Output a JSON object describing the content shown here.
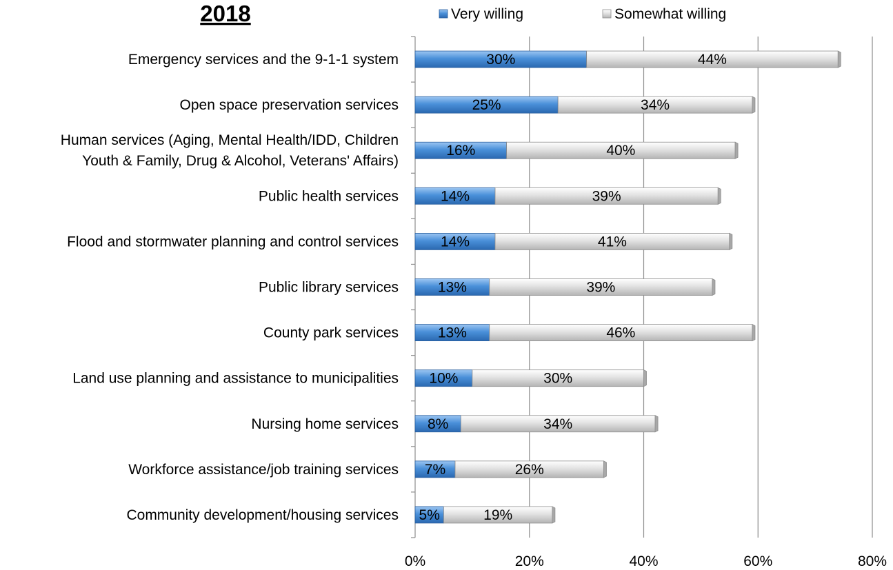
{
  "chart_data": {
    "type": "bar",
    "orientation": "horizontal",
    "stacked": true,
    "title": "2018",
    "categories": [
      [
        "Emergency services and the 9-1-1 system"
      ],
      [
        "Open space preservation services"
      ],
      [
        "Human services (Aging, Mental Health/IDD, Children",
        "Youth & Family, Drug & Alcohol, Veterans' Affairs)"
      ],
      [
        "Public health services"
      ],
      [
        "Flood and stormwater planning and control services"
      ],
      [
        "Public library services"
      ],
      [
        "County park services"
      ],
      [
        "Land use planning and assistance to municipalities"
      ],
      [
        "Nursing home services"
      ],
      [
        "Workforce assistance/job training services"
      ],
      [
        "Community development/housing services"
      ]
    ],
    "series": [
      {
        "name": "Very willing",
        "color": "#4a90d9",
        "values": [
          30,
          25,
          16,
          14,
          14,
          13,
          13,
          10,
          8,
          7,
          5
        ],
        "labels": [
          "30%",
          "25%",
          "16%",
          "14%",
          "14%",
          "13%",
          "13%",
          "10%",
          "8%",
          "7%",
          "5%"
        ]
      },
      {
        "name": "Somewhat willing",
        "color": "#d4d4d4",
        "values": [
          44,
          34,
          40,
          39,
          41,
          39,
          46,
          30,
          34,
          26,
          19
        ],
        "labels": [
          "44%",
          "34%",
          "40%",
          "39%",
          "41%",
          "39%",
          "46%",
          "30%",
          "34%",
          "26%",
          "19%"
        ]
      }
    ],
    "xlim": [
      0,
      80
    ],
    "xticks": [
      "0%",
      "20%",
      "40%",
      "60%",
      "80%"
    ],
    "grid": "vertical",
    "legend_position": "top"
  }
}
